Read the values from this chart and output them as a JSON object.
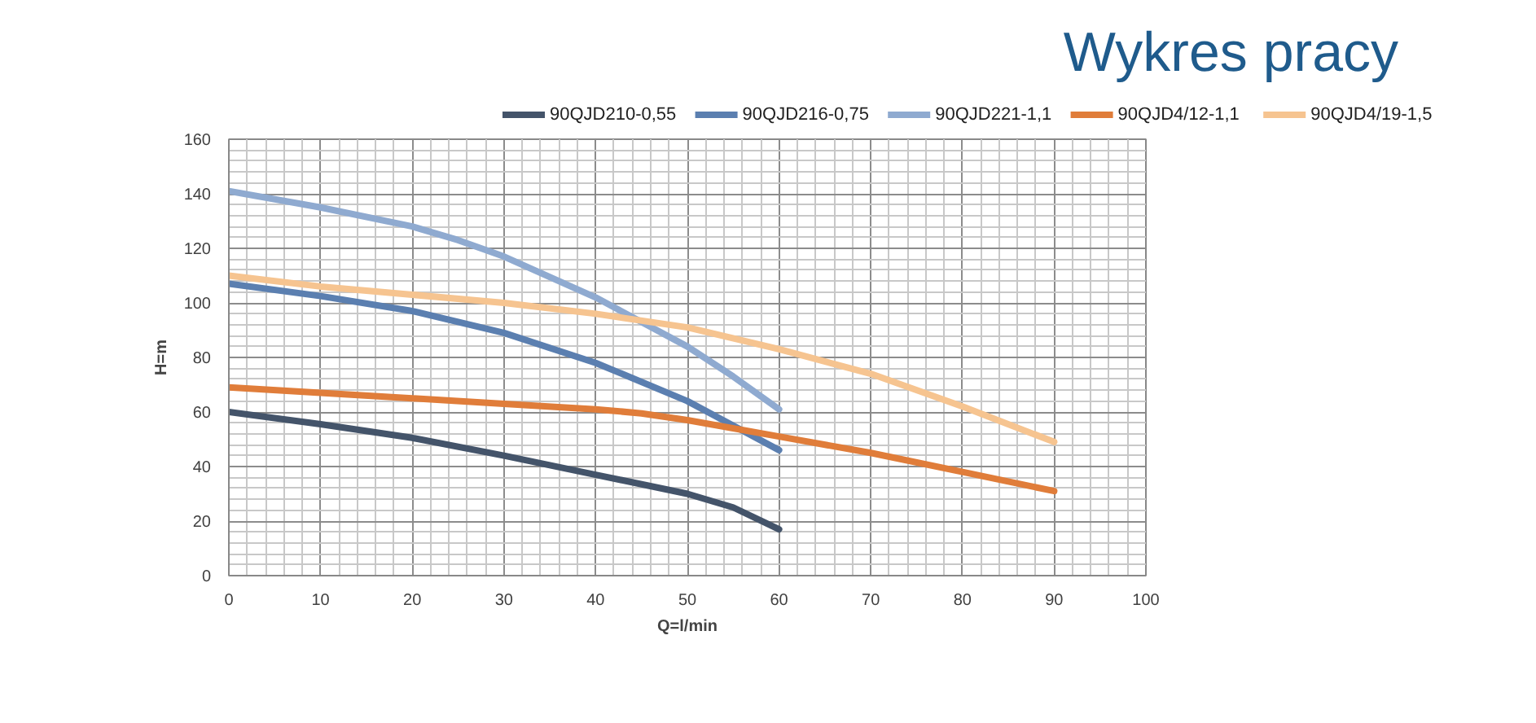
{
  "chart_data": {
    "type": "line",
    "title": "Wykres pracy",
    "xlabel": "Q=l/min",
    "ylabel": "H=m",
    "xlim": [
      0,
      100
    ],
    "xticks": [
      0,
      10,
      20,
      30,
      40,
      50,
      60,
      70,
      80,
      90,
      100
    ],
    "ylim": [
      0,
      160
    ],
    "yticks": [
      0,
      20,
      40,
      60,
      80,
      100,
      120,
      140,
      160
    ],
    "grid": true,
    "legend": "top",
    "marker": "none",
    "line_style": "solid",
    "series": [
      {
        "name": "90QJD210-0,55",
        "color": "#44546a",
        "x": [
          0,
          10,
          20,
          30,
          40,
          50,
          55,
          60
        ],
        "values": [
          60,
          55.5,
          50.5,
          44,
          37,
          30,
          25,
          17
        ]
      },
      {
        "name": "90QJD216-0,75",
        "color": "#5b7fb0",
        "x": [
          0,
          10,
          20,
          30,
          40,
          50,
          55,
          60
        ],
        "values": [
          107,
          102.5,
          97,
          89,
          78,
          64,
          55,
          46
        ]
      },
      {
        "name": "90QJD221-1,1",
        "color": "#8faad0",
        "x": [
          0,
          10,
          20,
          25,
          30,
          40,
          45,
          50,
          55,
          60
        ],
        "values": [
          141,
          135,
          128,
          123,
          117,
          102,
          93,
          84,
          73,
          61
        ]
      },
      {
        "name": "90QJD4/12-1,1",
        "color": "#e07d3a",
        "x": [
          0,
          10,
          20,
          30,
          40,
          45,
          50,
          60,
          70,
          80,
          90
        ],
        "values": [
          69,
          67,
          65,
          63,
          61,
          59.5,
          57,
          51,
          45,
          38,
          31
        ]
      },
      {
        "name": "90QJD4/19-1,5",
        "color": "#f6c490",
        "x": [
          0,
          10,
          20,
          30,
          40,
          50,
          60,
          70,
          80,
          90
        ],
        "values": [
          110,
          106,
          103,
          100,
          96,
          91,
          83,
          74,
          62,
          49
        ]
      }
    ]
  }
}
